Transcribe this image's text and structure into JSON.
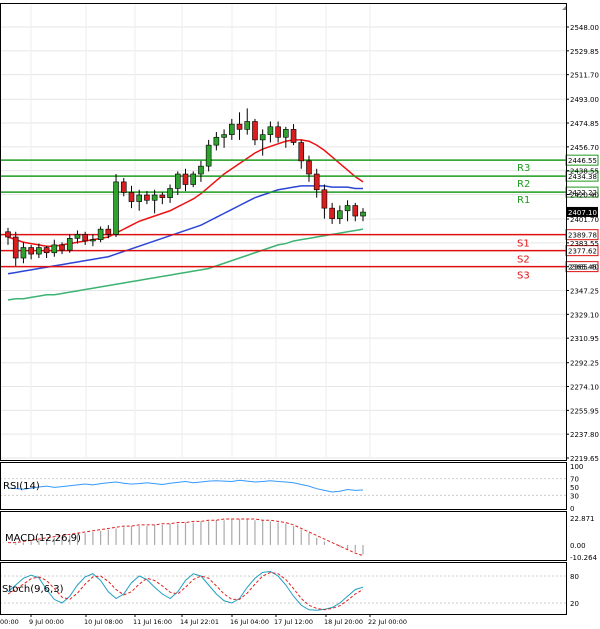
{
  "chart_data": {
    "type": "candlestick",
    "main": {
      "price_ticks": [
        2548.0,
        2529.85,
        2511.7,
        2493.0,
        2474.85,
        2456.7,
        2438.55,
        2420.4,
        2401.7,
        2383.55,
        2365.4,
        2347.25,
        2329.1,
        2310.95,
        2292.25,
        2274.1,
        2255.95,
        2237.8,
        2219.65
      ],
      "x_ticks": [
        "9 Jul 00:00",
        "10 Jul 08:00",
        "11 Jul 16:00",
        "14 Jul 22:01",
        "16 Jul 04:00",
        "17 Jul 12:00",
        "18 Jul 20:00",
        "22 Jul 00:00"
      ],
      "x_ticks_partial": [
        "00:00"
      ],
      "candles": [
        [
          2392,
          2395,
          2382,
          2388
        ],
        [
          2388,
          2392,
          2366,
          2372
        ],
        [
          2372,
          2384,
          2368,
          2380
        ],
        [
          2380,
          2382,
          2371,
          2375
        ],
        [
          2375,
          2383,
          2372,
          2380
        ],
        [
          2380,
          2381,
          2372,
          2376
        ],
        [
          2376,
          2386,
          2373,
          2382
        ],
        [
          2382,
          2384,
          2375,
          2378
        ],
        [
          2378,
          2390,
          2376,
          2387
        ],
        [
          2387,
          2393,
          2383,
          2390
        ],
        [
          2390,
          2392,
          2382,
          2385
        ],
        [
          2385,
          2390,
          2381,
          2386
        ],
        [
          2386,
          2396,
          2384,
          2394
        ],
        [
          2394,
          2397,
          2387,
          2390
        ],
        [
          2390,
          2436,
          2388,
          2430
        ],
        [
          2430,
          2433,
          2419,
          2422
        ],
        [
          2422,
          2427,
          2410,
          2415
        ],
        [
          2415,
          2424,
          2408,
          2420
        ],
        [
          2420,
          2423,
          2413,
          2416
        ],
        [
          2416,
          2424,
          2406,
          2420
        ],
        [
          2420,
          2422,
          2413,
          2418
        ],
        [
          2418,
          2428,
          2414,
          2425
        ],
        [
          2425,
          2438,
          2420,
          2436
        ],
        [
          2436,
          2440,
          2423,
          2428
        ],
        [
          2428,
          2438,
          2426,
          2436
        ],
        [
          2436,
          2446,
          2430,
          2442
        ],
        [
          2442,
          2462,
          2438,
          2458
        ],
        [
          2458,
          2468,
          2454,
          2464
        ],
        [
          2464,
          2470,
          2456,
          2466
        ],
        [
          2466,
          2478,
          2462,
          2474
        ],
        [
          2474,
          2483,
          2462,
          2470
        ],
        [
          2470,
          2486,
          2466,
          2476
        ],
        [
          2476,
          2478,
          2458,
          2462
        ],
        [
          2462,
          2470,
          2450,
          2466
        ],
        [
          2466,
          2476,
          2460,
          2472
        ],
        [
          2472,
          2476,
          2460,
          2464
        ],
        [
          2464,
          2472,
          2456,
          2470
        ],
        [
          2470,
          2474,
          2458,
          2460
        ],
        [
          2460,
          2462,
          2440,
          2446
        ],
        [
          2446,
          2450,
          2430,
          2436
        ],
        [
          2436,
          2440,
          2418,
          2424
        ],
        [
          2424,
          2428,
          2402,
          2410
        ],
        [
          2410,
          2414,
          2398,
          2402
        ],
        [
          2402,
          2412,
          2398,
          2408
        ],
        [
          2408,
          2416,
          2400,
          2412
        ],
        [
          2412,
          2414,
          2400,
          2404
        ],
        [
          2404,
          2410,
          2400,
          2407
        ]
      ],
      "ma_red_short": [
        2388,
        2386,
        2384,
        2383,
        2382,
        2381,
        2381,
        2382,
        2383,
        2384,
        2385,
        2386,
        2387,
        2388,
        2391,
        2394,
        2397,
        2400,
        2402,
        2404,
        2406,
        2408,
        2411,
        2414,
        2417,
        2421,
        2426,
        2431,
        2436,
        2440,
        2444,
        2448,
        2452,
        2455,
        2457,
        2459,
        2461,
        2462,
        2462,
        2461,
        2458,
        2454,
        2449,
        2444,
        2439,
        2434,
        2430
      ],
      "ma_blue_mid": [
        2360,
        2361,
        2362,
        2363,
        2364,
        2365,
        2366,
        2367,
        2368,
        2369,
        2370,
        2371,
        2372,
        2373,
        2375,
        2377,
        2379,
        2381,
        2383,
        2385,
        2387,
        2389,
        2391,
        2393,
        2395,
        2397,
        2400,
        2403,
        2406,
        2409,
        2412,
        2415,
        2418,
        2420,
        2422,
        2424,
        2425,
        2426,
        2427,
        2427,
        2427,
        2427,
        2426,
        2426,
        2426,
        2425,
        2425
      ],
      "ma_green_long": [
        2340,
        2341,
        2341,
        2342,
        2343,
        2344,
        2344,
        2345,
        2346,
        2347,
        2348,
        2349,
        2350,
        2351,
        2352,
        2353,
        2354,
        2355,
        2356,
        2357,
        2358,
        2359,
        2360,
        2361,
        2362,
        2363,
        2364,
        2366,
        2368,
        2370,
        2372,
        2374,
        2376,
        2378,
        2380,
        2382,
        2383,
        2385,
        2386,
        2387,
        2388,
        2389,
        2390,
        2391,
        2392,
        2393,
        2394
      ],
      "levels": [
        {
          "name": "R3",
          "price": 2446.55,
          "label": "2446.55",
          "color": "#1f9a1f"
        },
        {
          "name": "R2",
          "price": 2434.38,
          "label": "2434.38",
          "color": "#1f9a1f"
        },
        {
          "name": "R1",
          "price": 2422.22,
          "label": "2422.22",
          "color": "#1f9a1f"
        },
        {
          "name": "S1",
          "price": 2389.78,
          "label": "2389.78",
          "color": "#dd1111"
        },
        {
          "name": "S2",
          "price": 2377.62,
          "label": "2377.62",
          "color": "#dd1111"
        },
        {
          "name": "S3",
          "price": 2365.45,
          "label": "2365.45",
          "color": "#dd1111"
        }
      ],
      "current_price": "2407.10"
    },
    "rsi": {
      "label": "RSI(14)",
      "ticks": [
        "100",
        "70",
        "50",
        "30",
        "0"
      ],
      "values": [
        48,
        46,
        45,
        47,
        50,
        52,
        49,
        51,
        53,
        55,
        57,
        55,
        58,
        60,
        62,
        59,
        57,
        58,
        60,
        58,
        56,
        59,
        61,
        63,
        60,
        62,
        64,
        65,
        64,
        63,
        66,
        64,
        62,
        63,
        65,
        63,
        62,
        60,
        56,
        52,
        46,
        42,
        38,
        40,
        44,
        42,
        43
      ]
    },
    "macd": {
      "label": "MACD(12,26,9)",
      "ticks": [
        "22.871",
        "0.00",
        "-10.264"
      ],
      "hist": [
        0,
        1,
        2,
        3,
        4,
        5,
        6,
        7,
        8,
        9,
        10,
        11,
        12,
        13,
        14,
        15,
        16,
        16,
        16,
        17,
        17,
        18,
        18,
        19,
        19,
        20,
        20,
        21,
        21,
        22,
        22,
        22,
        21,
        21,
        20,
        19,
        18,
        16,
        13,
        10,
        6,
        3,
        0,
        -2,
        -4,
        -6,
        -8
      ],
      "signal": [
        2,
        2,
        3,
        4,
        5,
        6,
        7,
        8,
        9,
        10,
        11,
        12,
        13,
        14,
        15,
        16,
        16,
        17,
        17,
        17,
        18,
        18,
        19,
        19,
        20,
        20,
        21,
        21,
        22,
        22,
        22,
        22,
        22,
        21,
        21,
        20,
        19,
        17,
        14,
        11,
        8,
        5,
        2,
        -1,
        -4,
        -7,
        -9
      ]
    },
    "stoch": {
      "label": "Stoch(9,6,3)",
      "ticks": [
        "80",
        "20"
      ],
      "k": [
        45,
        60,
        75,
        82,
        76,
        50,
        28,
        20,
        35,
        60,
        78,
        85,
        70,
        45,
        30,
        40,
        65,
        80,
        72,
        55,
        40,
        30,
        45,
        70,
        85,
        80,
        60,
        40,
        25,
        20,
        30,
        55,
        75,
        88,
        90,
        80,
        60,
        35,
        15,
        5,
        4,
        6,
        10,
        20,
        35,
        50,
        55
      ],
      "d": [
        40,
        50,
        62,
        74,
        78,
        70,
        52,
        33,
        28,
        42,
        62,
        78,
        80,
        68,
        50,
        38,
        45,
        62,
        75,
        70,
        58,
        44,
        40,
        55,
        72,
        80,
        75,
        58,
        40,
        28,
        28,
        42,
        62,
        80,
        88,
        85,
        72,
        52,
        30,
        15,
        8,
        5,
        8,
        14,
        26,
        40,
        50
      ]
    }
  }
}
